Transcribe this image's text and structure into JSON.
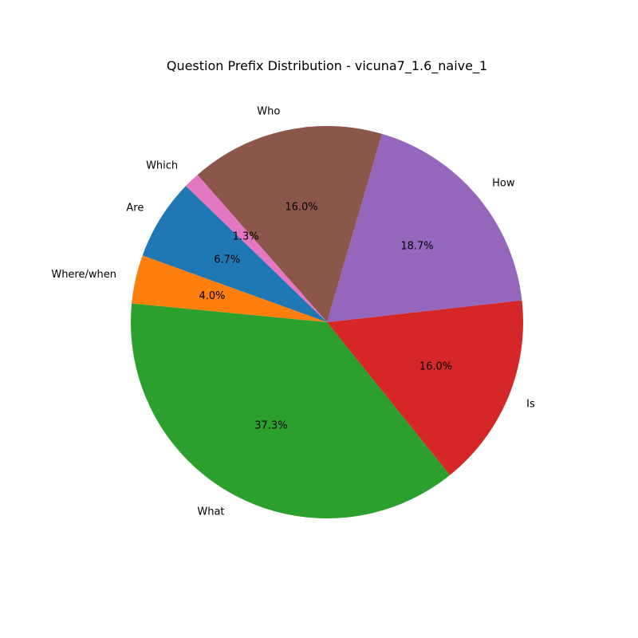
{
  "chart_data": {
    "type": "pie",
    "title": "Question Prefix Distribution - vicuna7_1.6_naive_1",
    "categories": [
      "Are",
      "Where/when",
      "What",
      "Is",
      "How",
      "Who",
      "Which"
    ],
    "values": [
      6.7,
      4.0,
      37.3,
      16.0,
      18.7,
      16.0,
      1.3
    ],
    "value_labels": [
      "6.7%",
      "4.0%",
      "37.3%",
      "16.0%",
      "18.7%",
      "16.0%",
      "1.3%"
    ],
    "colors": [
      "#1f77b4",
      "#ff7f0e",
      "#2ca02c",
      "#d62728",
      "#9467bd",
      "#8c564b",
      "#e377c2"
    ],
    "start_angle_deg": 136,
    "direction": "counterclockwise"
  }
}
